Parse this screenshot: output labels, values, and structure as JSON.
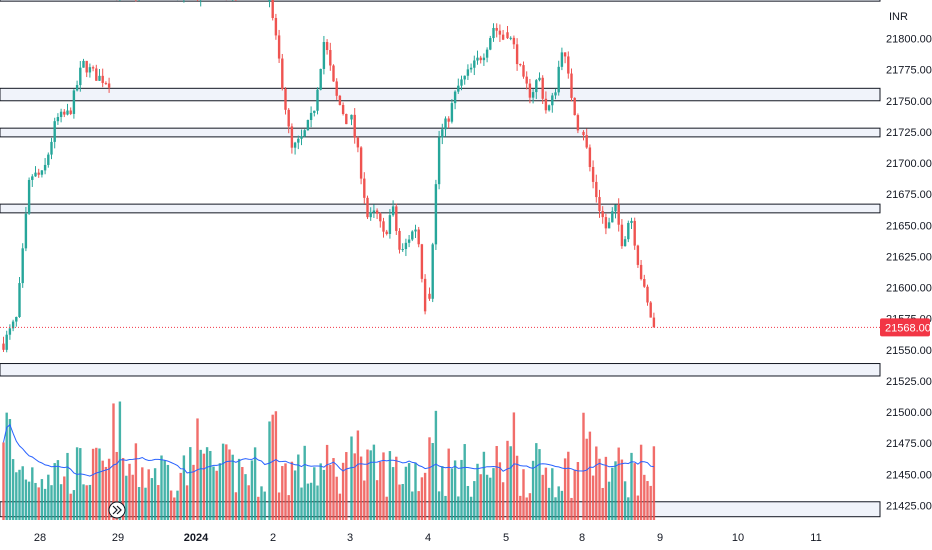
{
  "currency": "INR",
  "chart_data": {
    "type": "candlestick",
    "y_range": [
      21412,
      21840
    ],
    "y_ticks": [
      21800,
      21775,
      21750,
      21725,
      21700,
      21675,
      21650,
      21625,
      21600,
      21575,
      21550,
      21525,
      21500,
      21475,
      21450,
      21425
    ],
    "x_labels": [
      "28",
      "29",
      "2024",
      "2",
      "3",
      "4",
      "5",
      "8",
      "9",
      "10",
      "11"
    ],
    "last_price": 21568.0,
    "zones": [
      {
        "from": 21830,
        "to": 21835
      },
      {
        "from": 21750,
        "to": 21760
      },
      {
        "from": 21721,
        "to": 21728
      },
      {
        "from": 21660,
        "to": 21667
      },
      {
        "from": 21529,
        "to": 21539
      },
      {
        "from": 21416,
        "to": 21428
      }
    ],
    "colors": {
      "up": "#26a69a",
      "down": "#ef5350",
      "ma": "#2962ff",
      "zone_fill": "#f0f3fa",
      "last_price": "#f23645"
    },
    "sessions": [
      {
        "label": "28",
        "anchors": [
          21555,
          21575,
          21690,
          21690,
          21735,
          21740,
          21780,
          21770,
          21765
        ]
      },
      {
        "label": "29",
        "anchors": [
          21840,
          21835
        ]
      },
      {
        "label": "2024",
        "anchors": [
          21835,
          21840
        ]
      },
      {
        "label": "2",
        "anchors": [
          21830,
          21775,
          21710,
          21720,
          21740,
          21800,
          21755,
          21735
        ]
      },
      {
        "label": "3",
        "anchors": [
          21735,
          21700,
          21655,
          21660,
          21640,
          21665,
          21625,
          21640,
          21650,
          21585
        ]
      },
      {
        "label": "4",
        "anchors": [
          21595,
          21720,
          21735,
          21760,
          21770,
          21780,
          21790,
          21810,
          21800
        ]
      },
      {
        "label": "5",
        "anchors": [
          21805,
          21790,
          21765,
          21755,
          21770,
          21740,
          21755,
          21795,
          21760,
          21730
        ]
      },
      {
        "label": "8",
        "anchors": [
          21725,
          21690,
          21665,
          21645,
          21665,
          21635,
          21660,
          21620,
          21590,
          21568
        ]
      }
    ]
  }
}
